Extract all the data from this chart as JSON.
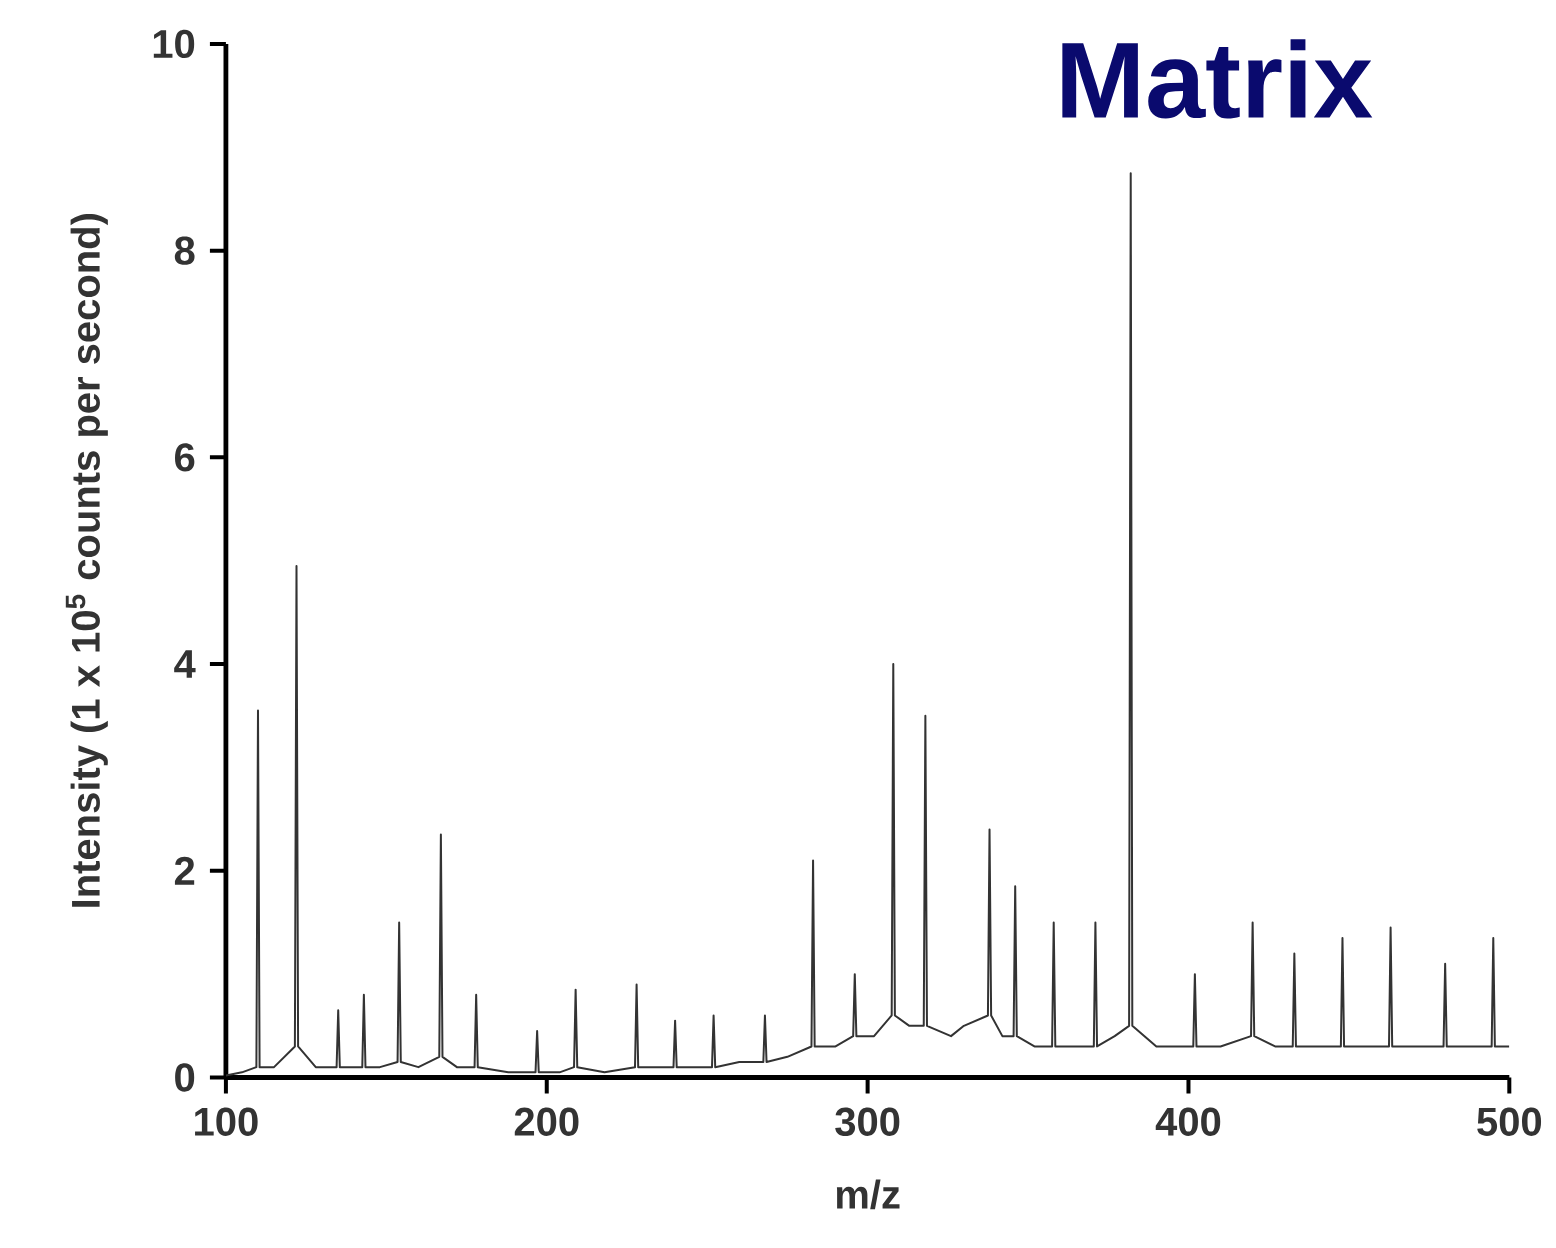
{
  "chart_data": {
    "type": "line",
    "title": "Matrix",
    "xlabel": "m/z",
    "ylabel": "Intensity (1 x 10$^{5}$ counts per second)",
    "xlim": [
      100,
      500
    ],
    "ylim": [
      0,
      10
    ],
    "xticks": [
      100,
      200,
      300,
      400,
      500
    ],
    "yticks": [
      0,
      2,
      4,
      6,
      8,
      10
    ],
    "marker": "none",
    "line_style": "solid",
    "series": [
      {
        "color": "#333333",
        "x": [
          100,
          105,
          109.5,
          110,
          110.5,
          115,
          121.5,
          122,
          122.5,
          128,
          134.5,
          135,
          135.5,
          142.5,
          143,
          143.5,
          148,
          153.5,
          154,
          154.5,
          160,
          166.5,
          167,
          167.5,
          172,
          177.5,
          178,
          178.5,
          188,
          196.5,
          197,
          197.5,
          204,
          208.5,
          209,
          209.5,
          218,
          227.5,
          228,
          228.5,
          235,
          239.5,
          240,
          240.5,
          246,
          251.5,
          252,
          252.5,
          260,
          267.5,
          268,
          268.5,
          275,
          282.5,
          283,
          283.5,
          290,
          295.5,
          296,
          296.5,
          302,
          307.5,
          308,
          308.5,
          313,
          317.5,
          318,
          318.5,
          326,
          330,
          337.5,
          338,
          338.5,
          342,
          345.5,
          346,
          346.5,
          352,
          357.5,
          358,
          358.5,
          365,
          370.5,
          371,
          371.5,
          377,
          381.5,
          382,
          382.5,
          390,
          395,
          401.5,
          402,
          402.5,
          410,
          419.5,
          420,
          420.5,
          427,
          432.5,
          433,
          433.5,
          440,
          447.5,
          448,
          448.5,
          455,
          462.5,
          463,
          463.5,
          472,
          479.5,
          480,
          480.5,
          488,
          494.5,
          495,
          495.5,
          500
        ],
        "values": [
          0.02,
          0.05,
          0.1,
          3.55,
          0.1,
          0.1,
          0.3,
          4.95,
          0.3,
          0.1,
          0.1,
          0.65,
          0.1,
          0.1,
          0.8,
          0.1,
          0.1,
          0.15,
          1.5,
          0.15,
          0.1,
          0.2,
          2.35,
          0.2,
          0.1,
          0.1,
          0.8,
          0.1,
          0.05,
          0.05,
          0.45,
          0.05,
          0.05,
          0.1,
          0.85,
          0.1,
          0.05,
          0.1,
          0.9,
          0.1,
          0.1,
          0.1,
          0.55,
          0.1,
          0.1,
          0.1,
          0.6,
          0.1,
          0.15,
          0.15,
          0.6,
          0.15,
          0.2,
          0.3,
          2.1,
          0.3,
          0.3,
          0.4,
          1.0,
          0.4,
          0.4,
          0.6,
          4.0,
          0.6,
          0.5,
          0.5,
          3.5,
          0.5,
          0.4,
          0.5,
          0.6,
          2.4,
          0.6,
          0.4,
          0.4,
          1.85,
          0.4,
          0.3,
          0.3,
          1.5,
          0.3,
          0.3,
          0.3,
          1.5,
          0.3,
          0.4,
          0.5,
          8.75,
          0.5,
          0.3,
          0.3,
          0.3,
          1.0,
          0.3,
          0.3,
          0.4,
          1.5,
          0.4,
          0.3,
          0.3,
          1.2,
          0.3,
          0.3,
          0.3,
          1.35,
          0.3,
          0.3,
          0.3,
          1.45,
          0.3,
          0.3,
          0.3,
          1.1,
          0.3,
          0.3,
          0.3,
          1.35,
          0.3,
          0.3
        ]
      }
    ]
  }
}
